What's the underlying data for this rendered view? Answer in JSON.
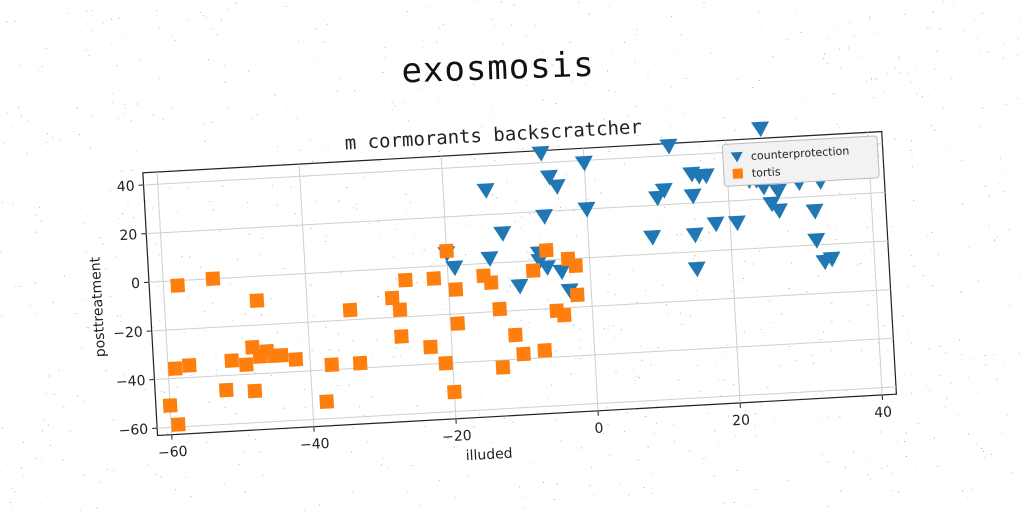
{
  "figure": {
    "suptitle": "exosmosis"
  },
  "chart_data": {
    "type": "scatter",
    "title": "m cormorants backscratcher",
    "xlabel": "illuded",
    "ylabel": "posttreatment",
    "xlim": [
      -62,
      42
    ],
    "ylim": [
      -63,
      45
    ],
    "xticks": [
      -60,
      -40,
      -20,
      0,
      20,
      40
    ],
    "yticks": [
      -60,
      -40,
      -20,
      0,
      20,
      40
    ],
    "grid": true,
    "legend_position": "top-right",
    "series": [
      {
        "name": "counterprotection",
        "marker": "triangle-down",
        "color": "#1f77b4",
        "points": [
          [
            -6,
            44
          ],
          [
            -14,
            30
          ],
          [
            -5,
            34
          ],
          [
            -4,
            30
          ],
          [
            0,
            39
          ],
          [
            -6,
            18
          ],
          [
            0,
            20
          ],
          [
            -12,
            12
          ],
          [
            -20,
            5
          ],
          [
            -14,
            2
          ],
          [
            -7,
            3
          ],
          [
            -6,
            -3
          ],
          [
            -7,
            0
          ],
          [
            -4,
            -5
          ],
          [
            -10,
            -10
          ],
          [
            -3,
            -13
          ],
          [
            -19,
            -1
          ],
          [
            12,
            44
          ],
          [
            25,
            49
          ],
          [
            33,
            39
          ],
          [
            34,
            37
          ],
          [
            36,
            30
          ],
          [
            33,
            26
          ],
          [
            30,
            26
          ],
          [
            15,
            32
          ],
          [
            16,
            31
          ],
          [
            17,
            31
          ],
          [
            11,
            26
          ],
          [
            10,
            23
          ],
          [
            15,
            23
          ],
          [
            23,
            28
          ],
          [
            24,
            28
          ],
          [
            25,
            28
          ],
          [
            25,
            25
          ],
          [
            27,
            23
          ],
          [
            26,
            18
          ],
          [
            27,
            15
          ],
          [
            32,
            14
          ],
          [
            21,
            11
          ],
          [
            18,
            11
          ],
          [
            9,
            7
          ],
          [
            15,
            7
          ],
          [
            32,
            2
          ],
          [
            15,
            -7
          ],
          [
            33,
            -7
          ],
          [
            34,
            -6
          ]
        ]
      },
      {
        "name": "tortis",
        "marker": "square",
        "color": "#ff7f0e",
        "points": [
          [
            -58,
            -2
          ],
          [
            -53,
            0
          ],
          [
            -47,
            -10
          ],
          [
            -59,
            -36
          ],
          [
            -57,
            -35
          ],
          [
            -51,
            -34
          ],
          [
            -48,
            -29
          ],
          [
            -47,
            -33
          ],
          [
            -46,
            -31
          ],
          [
            -45,
            -33
          ],
          [
            -44,
            -33
          ],
          [
            -42,
            -35
          ],
          [
            -49,
            -36
          ],
          [
            -52,
            -46
          ],
          [
            -48,
            -47
          ],
          [
            -60,
            -51
          ],
          [
            -59,
            -59
          ],
          [
            -38,
            -53
          ],
          [
            -37,
            -38
          ],
          [
            -33,
            -38
          ],
          [
            -34,
            -16
          ],
          [
            -28,
            -12
          ],
          [
            -27,
            -17
          ],
          [
            -26,
            -5
          ],
          [
            -22,
            -5
          ],
          [
            -20,
            6
          ],
          [
            -19,
            -10
          ],
          [
            -19,
            -24
          ],
          [
            -27,
            -28
          ],
          [
            -23,
            -33
          ],
          [
            -21,
            -40
          ],
          [
            -20,
            -52
          ],
          [
            -15,
            -5
          ],
          [
            -14,
            -8
          ],
          [
            -13,
            -19
          ],
          [
            -11,
            -30
          ],
          [
            -10,
            -38
          ],
          [
            -7,
            -37
          ],
          [
            -13,
            -43
          ],
          [
            -8,
            -4
          ],
          [
            -6,
            4
          ],
          [
            -5,
            -21
          ],
          [
            -4,
            -23
          ],
          [
            -3,
            0
          ],
          [
            -2,
            -3
          ],
          [
            -2,
            -15
          ]
        ]
      }
    ]
  }
}
